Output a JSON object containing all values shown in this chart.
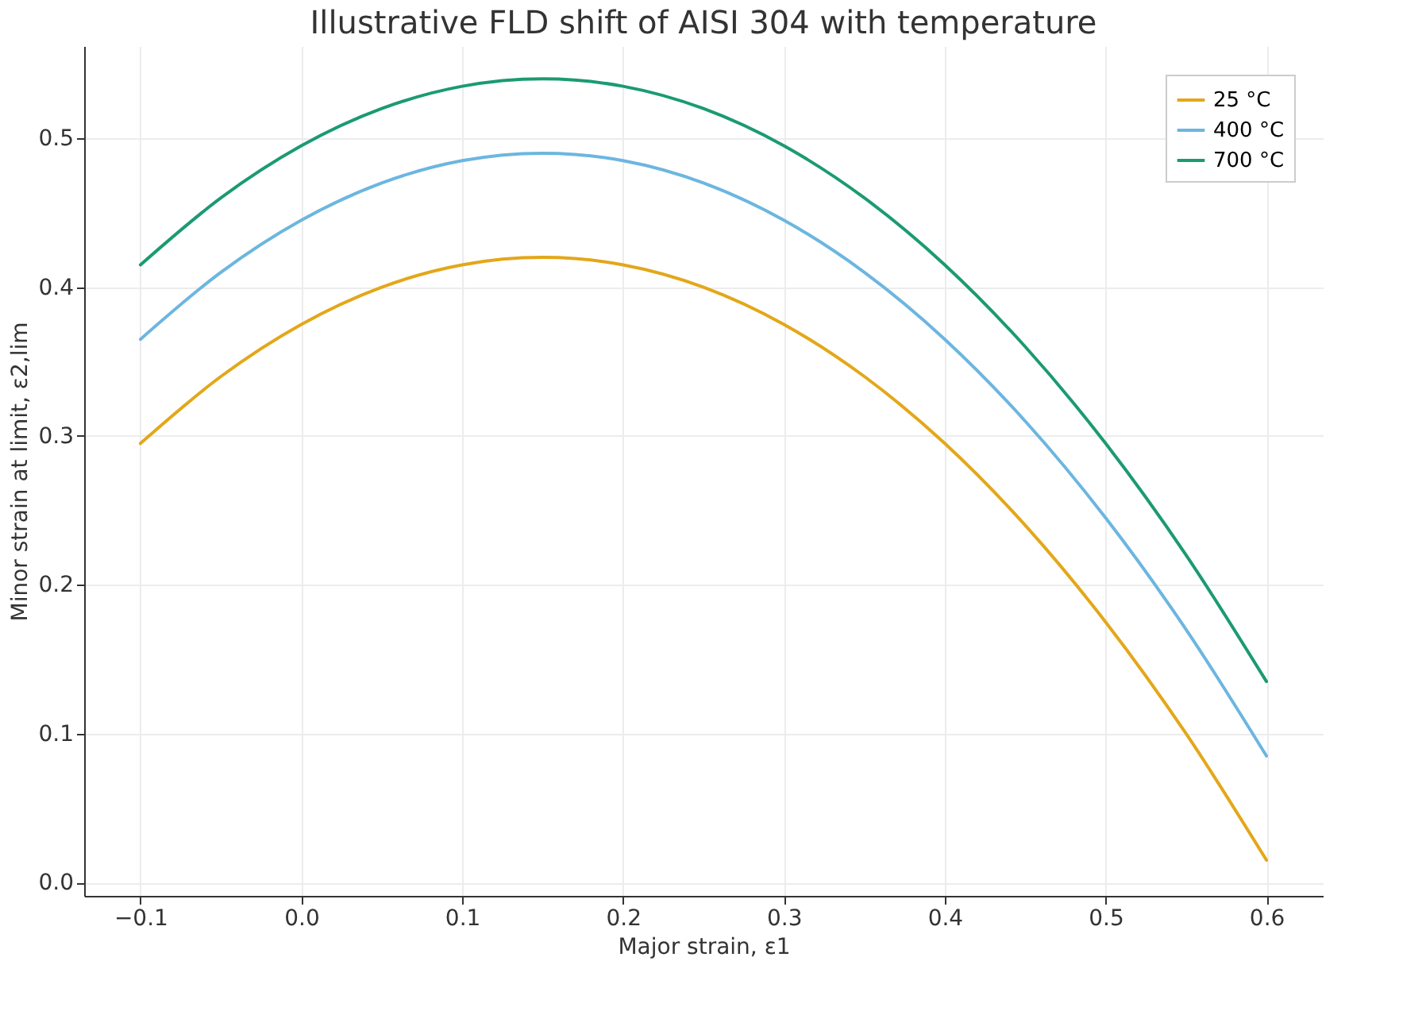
{
  "chart_data": {
    "type": "line",
    "title": "Illustrative FLD shift of AISI 304 with temperature",
    "xlabel": "Major strain, ε1",
    "ylabel": "Minor strain at limit, ε2,lim",
    "x": [
      -0.1,
      -0.05,
      0,
      0.05,
      0.1,
      0.15,
      0.2,
      0.25,
      0.3,
      0.35,
      0.4,
      0.45,
      0.5,
      0.55,
      0.6
    ],
    "series": [
      {
        "name": "25 °C",
        "color": "#e3a719",
        "values": [
          0.295,
          0.34,
          0.375,
          0.4,
          0.415,
          0.42,
          0.415,
          0.4,
          0.375,
          0.34,
          0.295,
          0.24,
          0.175,
          0.1,
          0.015
        ]
      },
      {
        "name": "400 °C",
        "color": "#6cb6e0",
        "values": [
          0.365,
          0.41,
          0.445,
          0.47,
          0.485,
          0.49,
          0.485,
          0.47,
          0.445,
          0.41,
          0.365,
          0.31,
          0.245,
          0.17,
          0.085
        ]
      },
      {
        "name": "700 °C",
        "color": "#1b9a73",
        "values": [
          0.415,
          0.46,
          0.495,
          0.52,
          0.535,
          0.54,
          0.535,
          0.52,
          0.495,
          0.46,
          0.415,
          0.36,
          0.295,
          0.22,
          0.135
        ]
      }
    ],
    "xlim": [
      -0.135,
      0.635
    ],
    "ylim": [
      -0.009,
      0.562
    ],
    "xticks": [
      -0.1,
      {
        "value": 0,
        "label": "0.0"
      },
      0.1,
      0.2,
      0.3,
      0.4,
      0.5,
      0.6
    ],
    "yticks": [
      {
        "value": 0,
        "label": "0.0"
      },
      0.1,
      0.2,
      0.3,
      0.4,
      0.5
    ],
    "grid": true,
    "legend": "top right",
    "marker": "none",
    "line_style": "solid"
  }
}
